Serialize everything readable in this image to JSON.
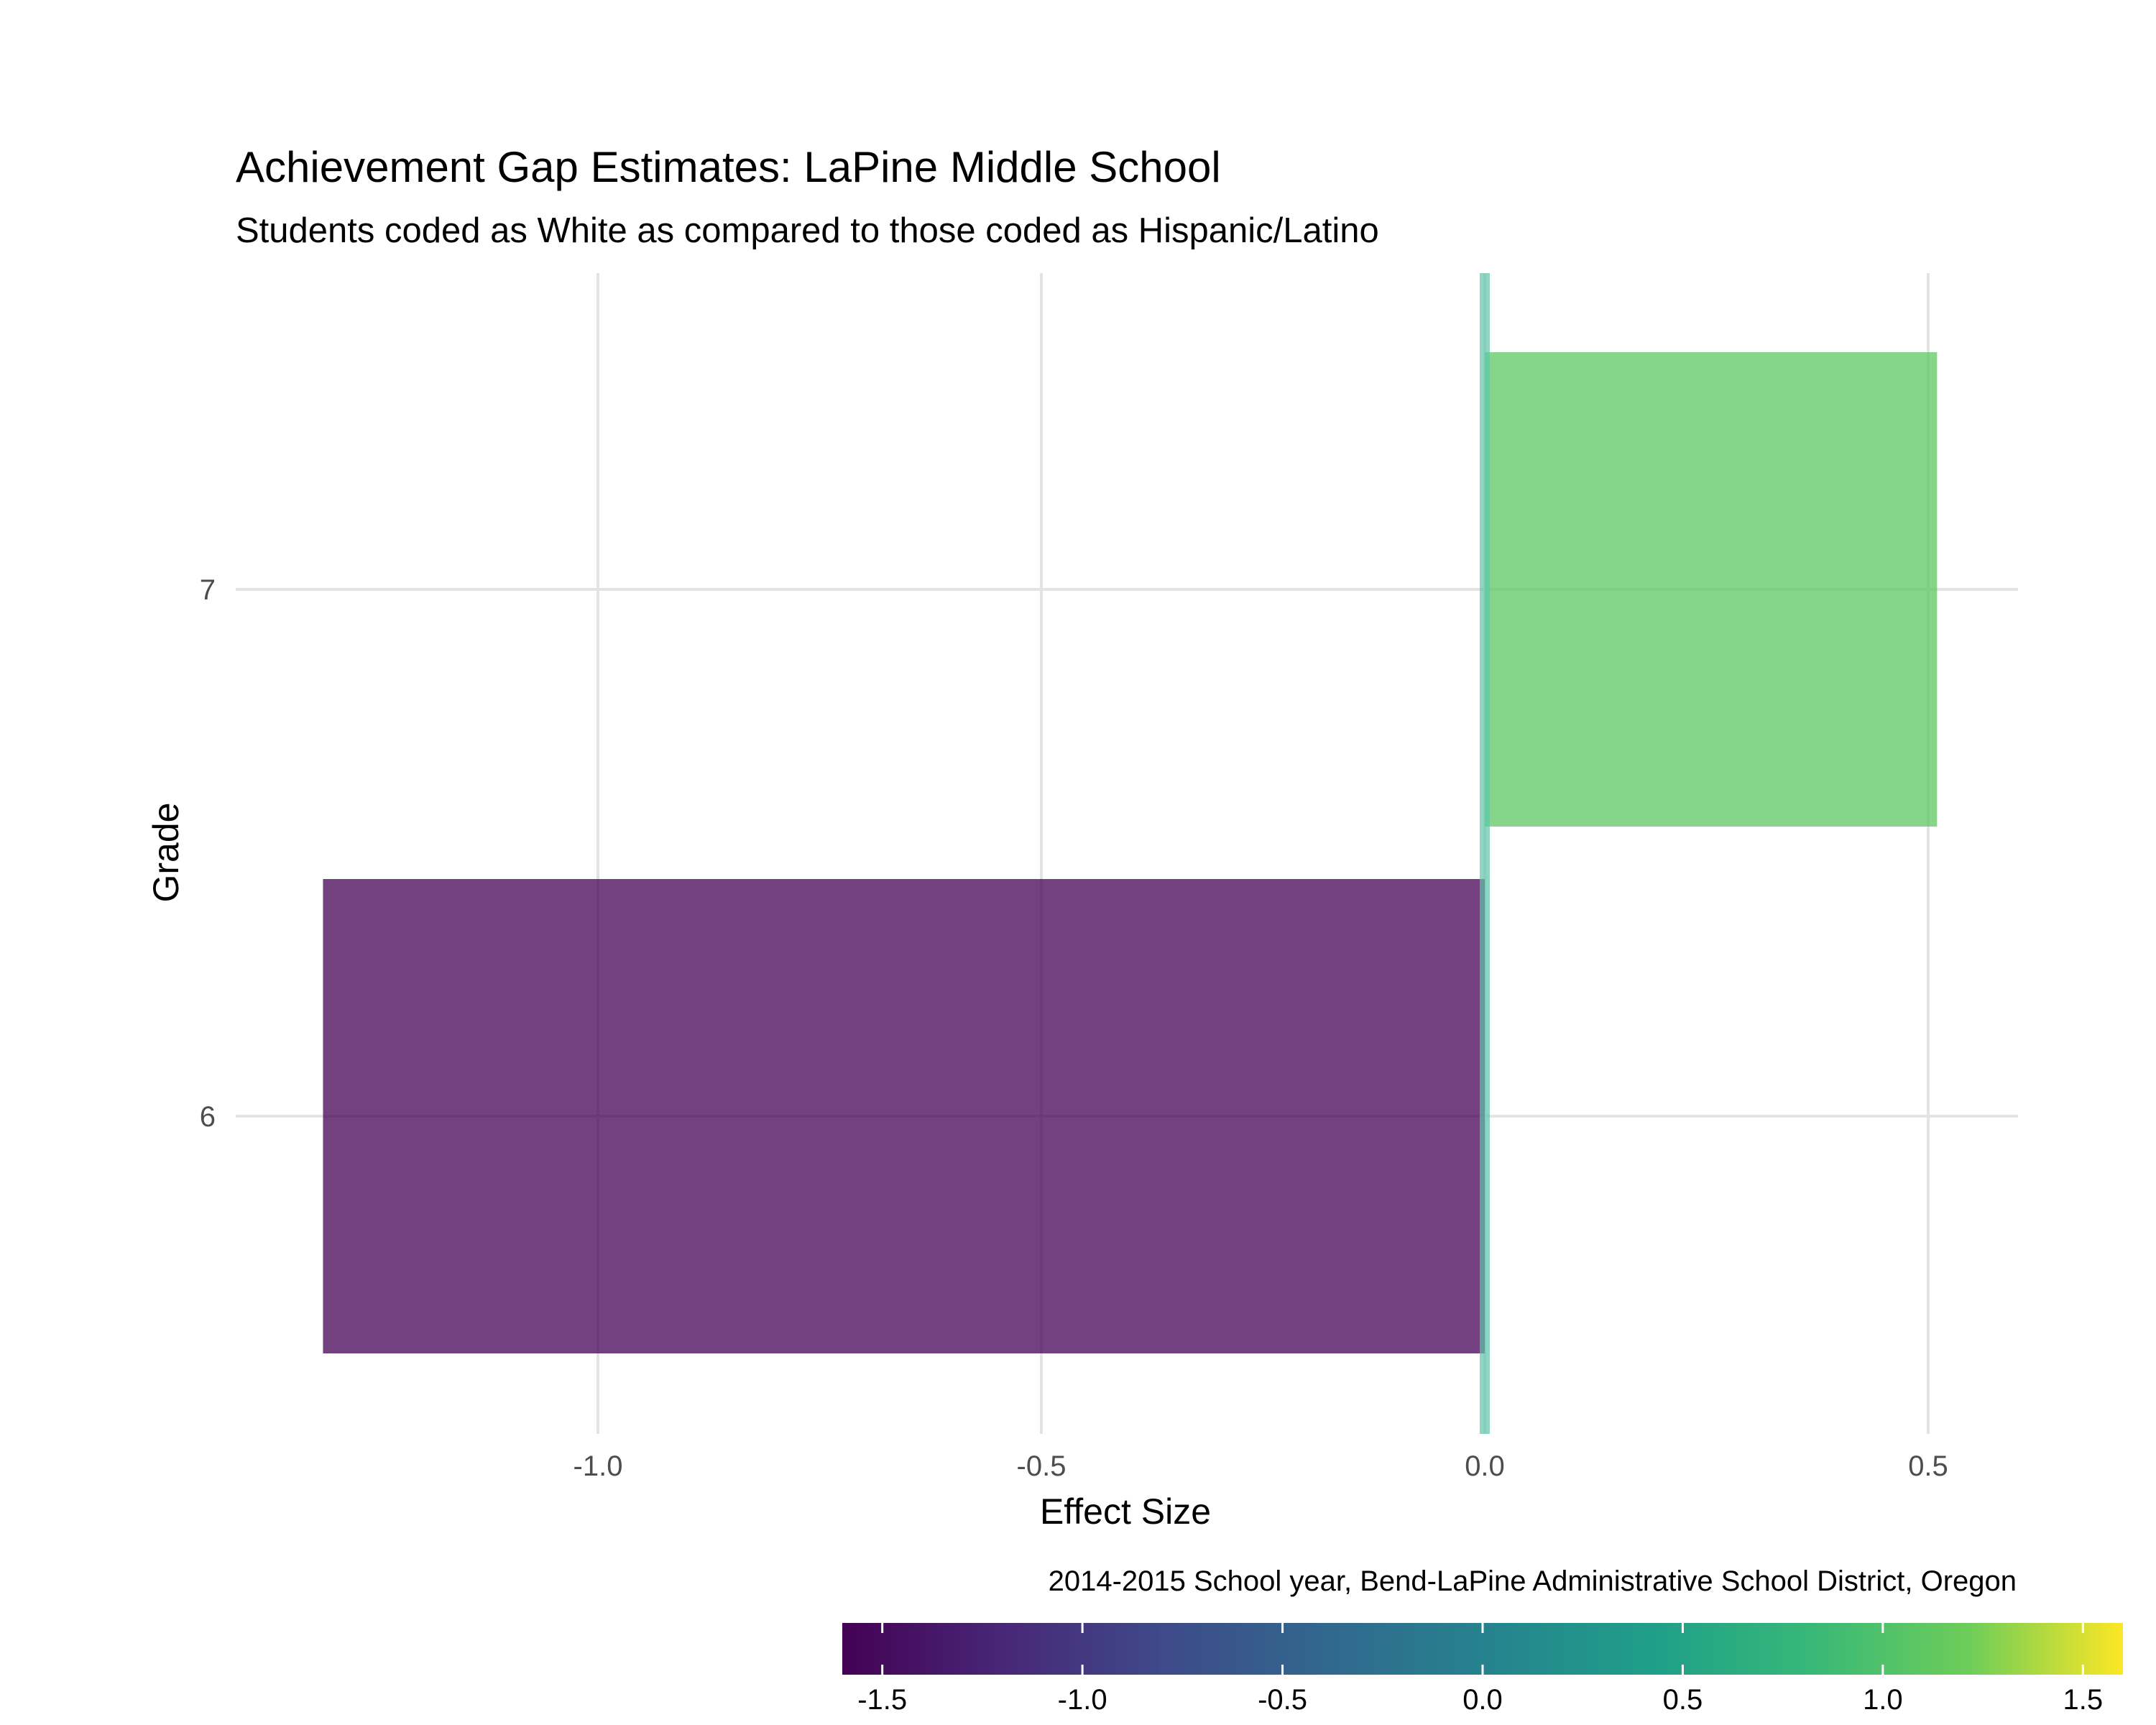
{
  "chart_data": {
    "type": "bar",
    "orientation": "horizontal",
    "title": "Achievement Gap Estimates: LaPine Middle School",
    "subtitle": "Students coded as White as compared to those coded as Hispanic/Latino",
    "xlabel": "Effect Size",
    "ylabel": "Grade",
    "caption": "2014-2015 School year, Bend-LaPine Administrative School District, Oregon",
    "categories": [
      "6",
      "7"
    ],
    "values": [
      -1.31,
      0.51
    ],
    "bar_colors": [
      "#440154",
      "#5DC863"
    ],
    "bar_opacity": 0.75,
    "reference_line": {
      "x": 0,
      "color": "#5EC4AA"
    },
    "xlim": [
      -1.4,
      0.6
    ],
    "x_ticks": [
      -1.0,
      -0.5,
      0.0,
      0.5
    ],
    "x_tick_labels": [
      "-1.0",
      "-0.5",
      "0.0",
      "0.5"
    ],
    "grid": true,
    "legend": {
      "type": "colorbar",
      "position": "bottom-right",
      "range": [
        -1.6,
        1.6
      ],
      "ticks": [
        -1.5,
        -1.0,
        -0.5,
        0.0,
        0.5,
        1.0,
        1.5
      ],
      "tick_labels": [
        "-1.5",
        "-1.0",
        "-0.5",
        "0.0",
        "0.5",
        "1.0",
        "1.5"
      ],
      "colormap": "viridis"
    }
  }
}
